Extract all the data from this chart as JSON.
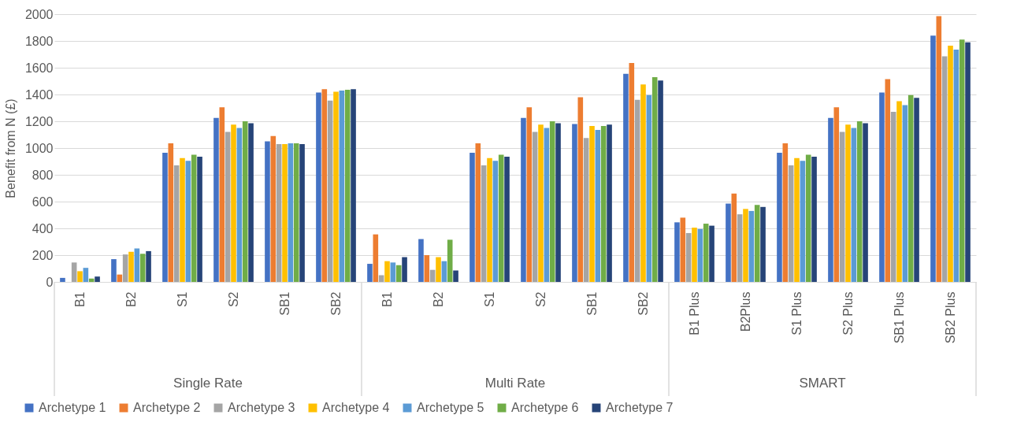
{
  "chart_data": {
    "type": "bar",
    "ylabel": "Benefit from N (£)",
    "categories": [
      "B1",
      "B2",
      "S1",
      "S2",
      "SB1",
      "SB2",
      "B1",
      "B2",
      "S1",
      "S2",
      "SB1",
      "SB2",
      "B1 Plus",
      "B2Plus",
      "S1 Plus",
      "S2 Plus",
      "SB1 Plus",
      "SB2 Plus"
    ],
    "annotations": [
      "Single Rate",
      "Multi Rate",
      "SMART"
    ],
    "ylim": [
      0,
      2000
    ],
    "yticks": [
      0,
      200,
      400,
      600,
      800,
      1000,
      1200,
      1400,
      1600,
      1800,
      2000
    ],
    "grid": "y",
    "legend": "bottom",
    "series": [
      {
        "name": "Archetype 1",
        "color": "#4472c4",
        "values": [
          30,
          170,
          965,
          1225,
          1050,
          1415,
          135,
          320,
          965,
          1225,
          1180,
          1555,
          445,
          585,
          965,
          1225,
          1415,
          1840
        ]
      },
      {
        "name": "Archetype 2",
        "color": "#ed7d31",
        "values": [
          0,
          55,
          1035,
          1305,
          1090,
          1440,
          355,
          200,
          1035,
          1305,
          1380,
          1635,
          480,
          660,
          1035,
          1305,
          1515,
          1985
        ]
      },
      {
        "name": "Archetype 3",
        "color": "#a5a5a5",
        "values": [
          145,
          205,
          870,
          1120,
          1030,
          1355,
          50,
          90,
          870,
          1120,
          1075,
          1360,
          365,
          505,
          870,
          1120,
          1270,
          1685
        ]
      },
      {
        "name": "Archetype 4",
        "color": "#ffc000",
        "values": [
          80,
          225,
          925,
          1175,
          1030,
          1420,
          155,
          185,
          925,
          1175,
          1165,
          1475,
          405,
          545,
          925,
          1175,
          1350,
          1765
        ]
      },
      {
        "name": "Archetype 5",
        "color": "#5b9bd5",
        "values": [
          105,
          250,
          905,
          1150,
          1035,
          1430,
          145,
          155,
          905,
          1150,
          1135,
          1395,
          395,
          530,
          905,
          1150,
          1320,
          1735
        ]
      },
      {
        "name": "Archetype 6",
        "color": "#70ad47",
        "values": [
          25,
          210,
          950,
          1200,
          1035,
          1435,
          125,
          315,
          950,
          1200,
          1165,
          1530,
          435,
          575,
          950,
          1200,
          1395,
          1810
        ]
      },
      {
        "name": "Archetype 7",
        "color": "#264478",
        "values": [
          40,
          230,
          935,
          1185,
          1030,
          1440,
          185,
          85,
          935,
          1185,
          1175,
          1505,
          420,
          560,
          935,
          1185,
          1375,
          1790
        ]
      }
    ]
  }
}
